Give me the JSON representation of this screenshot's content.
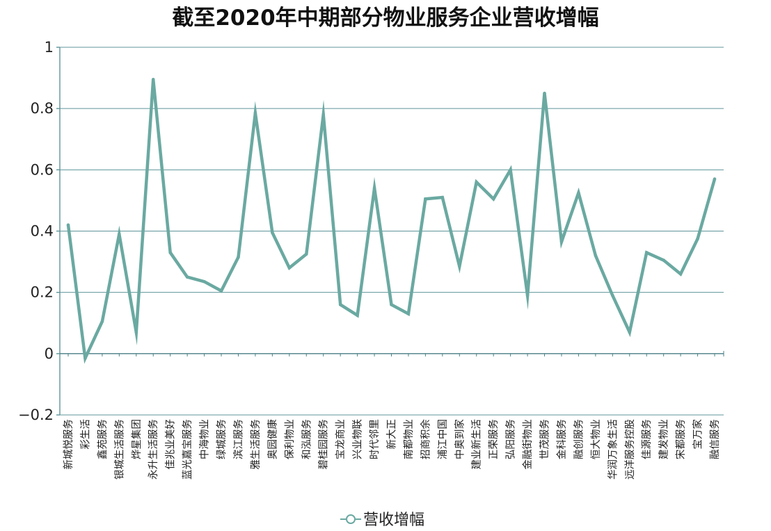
{
  "chart_data": {
    "type": "line",
    "title": "截至2020年中期部分物业服务企业营收增幅",
    "xlabel": "",
    "ylabel": "",
    "ylim": [
      -0.2,
      1
    ],
    "yticks": [
      "−0.2",
      "0",
      "0.2",
      "0.4",
      "0.6",
      "0.8",
      "1"
    ],
    "grid": true,
    "legend_position": "bottom-center",
    "categories": [
      "新城悦服务",
      "彩生活",
      "鑫苑服务",
      "银城生活服务",
      "烨星集团",
      "永升生活服务",
      "佳兆业美好",
      "蓝光嘉宝服务",
      "中海物业",
      "绿城服务",
      "滨江服务",
      "雅生活服务",
      "奥园健康",
      "保利物业",
      "和泓服务",
      "碧桂园服务",
      "宝龙商业",
      "兴业物联",
      "时代邻里",
      "新大正",
      "南都物业",
      "招商积余",
      "浦江中国",
      "中奥到家",
      "建业新生活",
      "正荣服务",
      "弘阳服务",
      "金融街物业",
      "世茂服务",
      "金科服务",
      "融创服务",
      "恒大物业",
      "华润万象生活",
      "远洋服务控股",
      "佳源服务",
      "建发物业",
      "宋都服务",
      "宝万家",
      "融信服务"
    ],
    "series": [
      {
        "name": "营收增幅",
        "color": "#6aa9a1",
        "values": [
          0.42,
          -0.015,
          0.105,
          0.39,
          0.07,
          0.895,
          0.33,
          0.25,
          0.235,
          0.205,
          0.315,
          0.785,
          0.395,
          0.28,
          0.325,
          0.78,
          0.16,
          0.125,
          0.54,
          0.16,
          0.13,
          0.505,
          0.51,
          0.285,
          0.56,
          0.505,
          0.6,
          0.19,
          0.85,
          0.365,
          0.525,
          0.32,
          0.19,
          0.07,
          0.33,
          0.305,
          0.26,
          0.375,
          0.57
        ]
      }
    ]
  }
}
